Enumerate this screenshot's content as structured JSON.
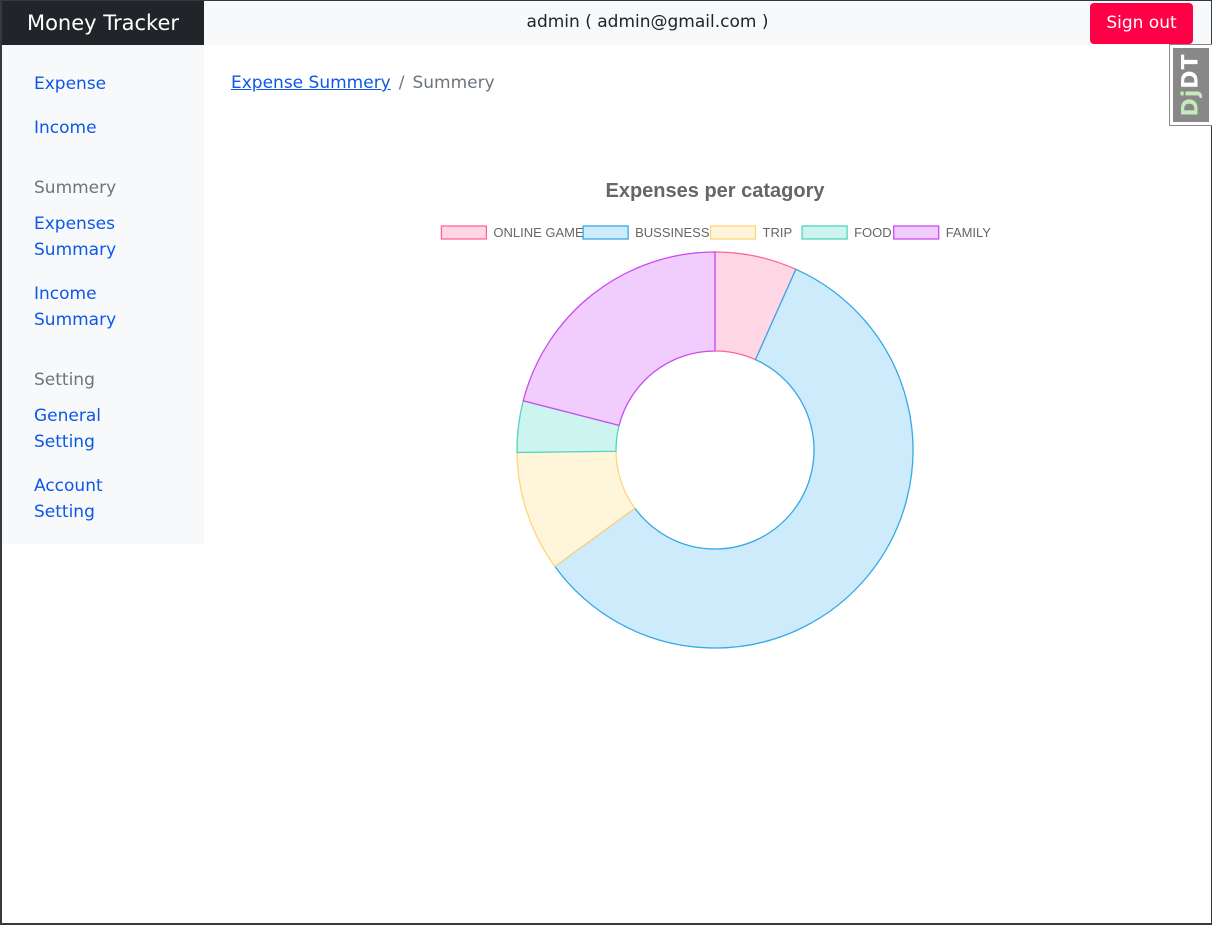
{
  "navbar": {
    "brand": "Money Tracker",
    "user_info": "admin ( admin@gmail.com )",
    "signout_label": "Sign out"
  },
  "sidebar": {
    "items": [
      {
        "type": "link",
        "label": "Expense"
      },
      {
        "type": "link",
        "label": "Income"
      },
      {
        "type": "heading",
        "label": "Summery"
      },
      {
        "type": "link",
        "label": "Expenses Summary",
        "lines": [
          "Expenses",
          "Summary"
        ]
      },
      {
        "type": "link",
        "label": "Income Summary",
        "lines": [
          "Income",
          "Summary"
        ]
      },
      {
        "type": "heading",
        "label": "Setting"
      },
      {
        "type": "link",
        "label": "General Setting",
        "lines": [
          "General",
          "Setting"
        ]
      },
      {
        "type": "link",
        "label": "Account Setting",
        "lines": [
          "Account",
          "Setting"
        ]
      }
    ]
  },
  "breadcrumb": {
    "parent": "Expense Summery",
    "separator": "/",
    "current": "Summery"
  },
  "djdt": {
    "label_dj": "Dj",
    "label_dt": "DT"
  },
  "chart_data": {
    "type": "pie",
    "variant": "doughnut",
    "title": "Expenses per catagory",
    "legend_position": "top",
    "categories": [
      "ONLINE GAME",
      "BUSSINESS",
      "TRIP",
      "FOOD",
      "FAMILY"
    ],
    "values": [
      6.7,
      58.3,
      9.8,
      4.2,
      21.0
    ],
    "colors": {
      "fill": [
        "#ffd6e3",
        "#cdebfa",
        "#fff5da",
        "#cdf4ee",
        "#f1cdfd"
      ],
      "stroke": [
        "#ff6693",
        "#36a8e8",
        "#ffd67a",
        "#4fd6c0",
        "#c94cf2"
      ]
    }
  }
}
